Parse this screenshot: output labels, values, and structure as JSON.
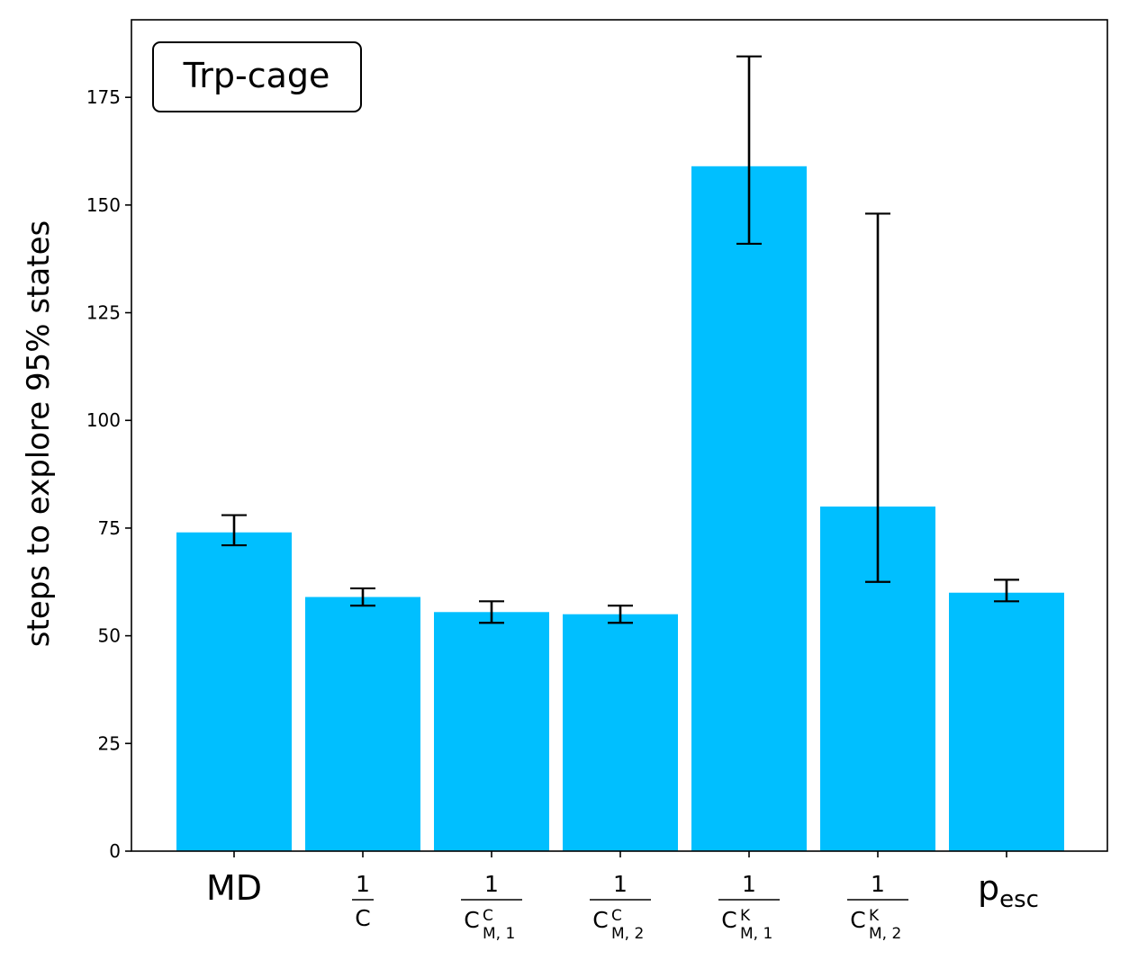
{
  "chart_data": {
    "type": "bar",
    "annotation": "Trp-cage",
    "ylabel": "steps to explore 95% states",
    "xlabel": "",
    "ylim": [
      0,
      193
    ],
    "yticks": [
      0,
      25,
      50,
      75,
      100,
      125,
      150,
      175
    ],
    "bar_color": "#00bfff",
    "error_color": "#000000",
    "categories": [
      {
        "kind": "plain",
        "text": "MD"
      },
      {
        "kind": "frac",
        "num": "1",
        "den": "C",
        "sup": "",
        "sub": ""
      },
      {
        "kind": "frac",
        "num": "1",
        "den": "C",
        "sup": "C",
        "sub": "M, 1"
      },
      {
        "kind": "frac",
        "num": "1",
        "den": "C",
        "sup": "C",
        "sub": "M, 2"
      },
      {
        "kind": "frac",
        "num": "1",
        "den": "C",
        "sup": "K",
        "sub": "M, 1"
      },
      {
        "kind": "frac",
        "num": "1",
        "den": "C",
        "sup": "K",
        "sub": "M, 2"
      },
      {
        "kind": "subscript",
        "base": "p",
        "sub": "esc"
      }
    ],
    "values": [
      74,
      59,
      55.5,
      55,
      159,
      80,
      60
    ],
    "err_low": [
      71,
      57,
      53,
      53,
      141,
      62.5,
      58
    ],
    "err_high": [
      78,
      61,
      58,
      57,
      184.5,
      148,
      63
    ]
  }
}
